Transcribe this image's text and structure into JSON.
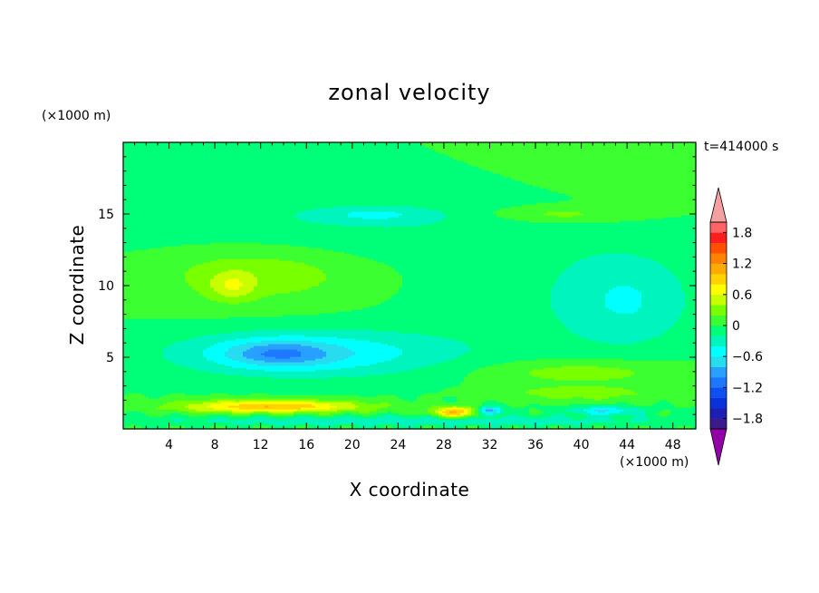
{
  "chart_data": {
    "type": "heatmap",
    "title": "zonal velocity",
    "annotation": "t=414000 s",
    "xlabel": "X coordinate",
    "ylabel": "Z coordinate",
    "x_unit": "(×1000 m)",
    "y_unit": "(×1000 m)",
    "xlim": [
      0,
      50
    ],
    "ylim": [
      0,
      20
    ],
    "x_ticks": [
      4,
      8,
      12,
      16,
      20,
      24,
      28,
      32,
      36,
      40,
      44,
      48
    ],
    "y_ticks": [
      5,
      10,
      15
    ],
    "colorbar": {
      "ticks": [
        1.8,
        1.2,
        0.6,
        0,
        -0.6,
        -1.2,
        -1.8
      ],
      "tick_labels": [
        "1.8",
        "1.2",
        "0.6",
        "0",
        "−0.6",
        "−1.2",
        "−1.8"
      ],
      "levels": [
        -2.0,
        -1.8,
        -1.6,
        -1.4,
        -1.2,
        -1.0,
        -0.8,
        -0.6,
        -0.4,
        -0.2,
        0,
        0.2,
        0.4,
        0.6,
        0.8,
        1.0,
        1.2,
        1.4,
        1.6,
        1.8,
        2.0
      ],
      "colors": [
        "#9400a8",
        "#3c1a8c",
        "#1e1eb4",
        "#0a32dc",
        "#1050f0",
        "#1e78ff",
        "#28a0ff",
        "#28dcf0",
        "#00ffff",
        "#00f5be",
        "#00ff78",
        "#3cff32",
        "#78ff00",
        "#c8ff00",
        "#ffff00",
        "#ffd200",
        "#ffaa00",
        "#ff8200",
        "#ff5000",
        "#ff1e1e",
        "#ff6464",
        "#f5a0a0"
      ]
    },
    "features": [
      {
        "x": 0,
        "y": 17.5,
        "sx": 30,
        "sy": 4,
        "v": 0.0
      },
      {
        "x": 46,
        "y": 18,
        "sx": 10,
        "sy": 3,
        "v": 0.1
      },
      {
        "x": 18,
        "y": 14,
        "sx": 20,
        "sy": 2.5,
        "v": -0.2
      },
      {
        "x": 22,
        "y": 15,
        "sx": 5,
        "sy": 0.5,
        "v": -0.3
      },
      {
        "x": 38,
        "y": 15,
        "sx": 6,
        "sy": 0.6,
        "v": 0.3
      },
      {
        "x": 12,
        "y": 11,
        "sx": 10,
        "sy": 2.2,
        "v": 0.35
      },
      {
        "x": 9.5,
        "y": 10,
        "sx": 2,
        "sy": 1,
        "v": 0.4
      },
      {
        "x": 44,
        "y": 9,
        "sx": 5,
        "sy": 3,
        "v": -0.3
      },
      {
        "x": 39,
        "y": 9,
        "sx": 14,
        "sy": 5,
        "v": -0.15
      },
      {
        "x": 16,
        "y": 5.3,
        "sx": 12,
        "sy": 1.6,
        "v": -0.6
      },
      {
        "x": 13.5,
        "y": 5.3,
        "sx": 4.5,
        "sy": 0.9,
        "v": -0.5
      },
      {
        "x": 40,
        "y": 4,
        "sx": 9,
        "sy": 0.9,
        "v": 0.35
      },
      {
        "x": 40,
        "y": 2.5,
        "sx": 8,
        "sy": 0.6,
        "v": 0.3
      },
      {
        "x": 13,
        "y": 1.6,
        "sx": 8,
        "sy": 0.45,
        "v": 1.0
      },
      {
        "x": 29,
        "y": 1.2,
        "sx": 2,
        "sy": 0.4,
        "v": 1.0
      },
      {
        "x": 32,
        "y": 1.3,
        "sx": 1,
        "sy": 0.3,
        "v": -1.0
      },
      {
        "x": 42,
        "y": 1.3,
        "sx": 3,
        "sy": 0.3,
        "v": -0.6
      },
      {
        "x": 25,
        "y": 0.6,
        "sx": 25,
        "sy": 0.35,
        "v": -0.35
      }
    ]
  }
}
